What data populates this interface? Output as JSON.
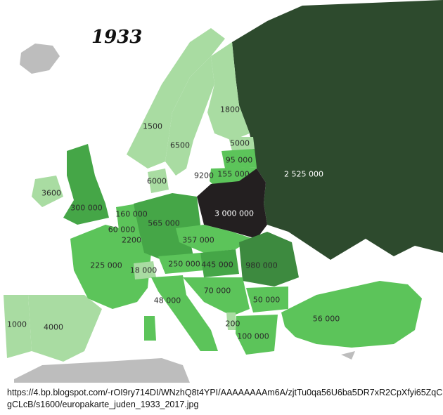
{
  "title": "1933",
  "colors": {
    "none": "#bdbdbd",
    "lowest": "#a9dca2",
    "low": "#5cc45a",
    "medium": "#45a647",
    "high": "#3d8a3f",
    "russia": "#2d4a2d",
    "poland": "#231f20"
  },
  "labels": {
    "finland": "1800",
    "norway": "1500",
    "sweden": "6500",
    "estonia": "5000",
    "latvia": "95 000",
    "lithuania": "155 000",
    "danzig": "9200",
    "denmark": "6000",
    "soviet_union": "2 525 000",
    "ireland": "3600",
    "poland": "3 000 000",
    "uk": "300 000",
    "netherlands": "160 000",
    "germany": "565 000",
    "belgium": "60 000",
    "luxembourg": "2200",
    "czechoslovakia": "357 000",
    "france": "225 000",
    "switzerland": "18 000",
    "austria": "250 000",
    "hungary": "445 000",
    "romania": "980 000",
    "yugoslavia": "70 000",
    "italy": "48 000",
    "bulgaria": "50 000",
    "turkey": "56 000",
    "portugal": "1000",
    "spain": "4000",
    "albania": "200",
    "greece": "100 000"
  },
  "source": "https://4.bp.blogspot.com/-rOI9ry714DI/WNzhQ8t4YPI/AAAAAAAAm6A/zjtTu0qa56U6ba5DR7xR2CpXfyi65ZqCgCLcB/s1600/europakarte_juden_1933_2017.jpg"
}
